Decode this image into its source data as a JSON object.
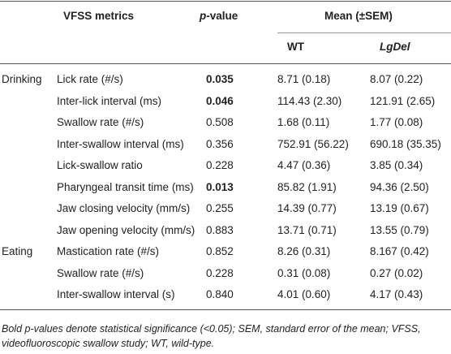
{
  "table": {
    "header": {
      "metrics": "VFSS metrics",
      "p_value": "p-value",
      "mean": "Mean (±SEM)",
      "wt": "WT",
      "lgdel": "LgDel"
    },
    "rows": [
      {
        "group": "Drinking",
        "metric": "Lick rate (#/s)",
        "p": "0.035",
        "significant": true,
        "wt": "8.71 (0.18)",
        "lgdel": "8.07 (0.22)"
      },
      {
        "group": null,
        "metric": "Inter-lick interval (ms)",
        "p": "0.046",
        "significant": true,
        "wt": "114.43 (2.30)",
        "lgdel": "121.91 (2.65)"
      },
      {
        "group": null,
        "metric": "Swallow rate (#/s)",
        "p": "0.508",
        "significant": false,
        "wt": "1.68 (0.11)",
        "lgdel": "1.77 (0.08)"
      },
      {
        "group": null,
        "metric": "Inter-swallow interval (ms)",
        "p": "0.356",
        "significant": false,
        "wt": "752.91 (56.22)",
        "lgdel": "690.18 (35.35)"
      },
      {
        "group": null,
        "metric": "Lick-swallow ratio",
        "p": "0.228",
        "significant": false,
        "wt": "4.47 (0.36)",
        "lgdel": "3.85 (0.34)"
      },
      {
        "group": null,
        "metric": "Pharyngeal transit time (ms)",
        "p": "0.013",
        "significant": true,
        "wt": "85.82 (1.91)",
        "lgdel": "94.36 (2.50)"
      },
      {
        "group": null,
        "metric": "Jaw closing velocity (mm/s)",
        "p": "0.255",
        "significant": false,
        "wt": "14.39 (0.77)",
        "lgdel": "13.19 (0.67)"
      },
      {
        "group": null,
        "metric": "Jaw opening velocity (mm/s)",
        "p": "0.883",
        "significant": false,
        "wt": "13.71 (0.71)",
        "lgdel": "13.55 (0.79)"
      },
      {
        "group": "Eating",
        "metric": "Mastication rate (#/s)",
        "p": "0.852",
        "significant": false,
        "wt": "8.26 (0.31)",
        "lgdel": "8.167 (0.42)"
      },
      {
        "group": null,
        "metric": "Swallow rate (#/s)",
        "p": "0.228",
        "significant": false,
        "wt": "0.31 (0.08)",
        "lgdel": "0.27 (0.02)"
      },
      {
        "group": null,
        "metric": "Inter-swallow interval (s)",
        "p": "0.840",
        "significant": false,
        "wt": "4.01 (0.60)",
        "lgdel": "4.17 (0.43)"
      }
    ],
    "footnote": "Bold p-values denote statistical significance (<0.05); SEM, standard error of the mean; VFSS, videofluoroscopic swallow study; WT, wild-type."
  }
}
